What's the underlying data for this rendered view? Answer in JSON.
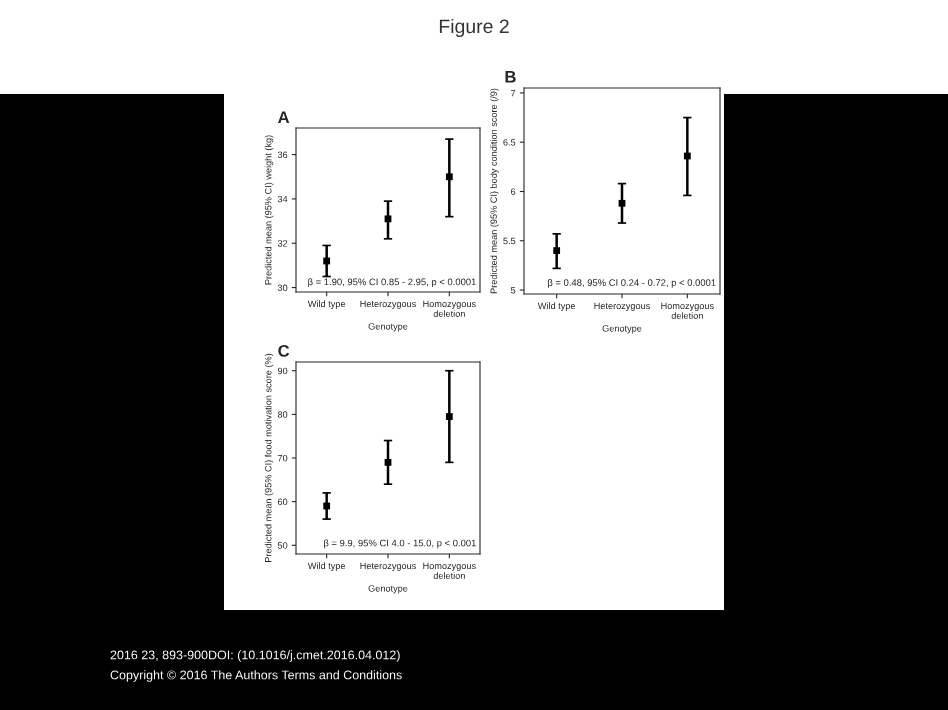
{
  "chart_data": [
    {
      "type": "scatter",
      "title": "A",
      "xlabel": "Genotype",
      "ylabel": "Predicted mean (95% CI) weight (kg)",
      "categories": [
        "Wild type",
        "Heterozygous",
        "Homozygous\ndeletion"
      ],
      "series": [
        {
          "color": "#000000",
          "values": [
            31.2,
            33.1,
            35.0
          ],
          "errors": [
            [
              30.5,
              31.9
            ],
            [
              32.2,
              33.9
            ],
            [
              33.2,
              36.7
            ]
          ]
        }
      ],
      "ylim": [
        29.8,
        37.2
      ],
      "yticks": [
        30,
        32,
        34,
        36
      ],
      "marker": "square",
      "grid": false,
      "legend": false,
      "annotations": [
        "β = 1.90, 95% CI 0.85 - 2.95, p < 0.0001",
        "Figure 2",
        "2016 23, 893-900DOI: (10.1016/j.cmet.2016.04.012)",
        "Copyright © 2016 The Authors Terms and Conditions"
      ]
    },
    {
      "type": "scatter",
      "title": "B",
      "xlabel": "Genotype",
      "ylabel": "Predicted mean (95% CI) body condition score (/9)",
      "categories": [
        "Wild type",
        "Heterozygous",
        "Homozygous\ndeletion"
      ],
      "series": [
        {
          "color": "#000000",
          "values": [
            5.4,
            5.88,
            6.36
          ],
          "errors": [
            [
              5.22,
              5.57
            ],
            [
              5.68,
              6.08
            ],
            [
              5.96,
              6.75
            ]
          ]
        }
      ],
      "ylim": [
        4.96,
        7.05
      ],
      "yticks": [
        5,
        5.5,
        6,
        6.5,
        7
      ],
      "marker": "square",
      "grid": false,
      "legend": false,
      "annotations": [
        "β = 0.48, 95% CI 0.24 - 0.72, p < 0.0001"
      ]
    },
    {
      "type": "scatter",
      "title": "C",
      "xlabel": "Genotype",
      "ylabel": "Predicted mean (95% CI) food motivation score (%)",
      "categories": [
        "Wild type",
        "Heterozygous",
        "Homozygous\ndeletion"
      ],
      "series": [
        {
          "color": "#000000",
          "values": [
            59,
            69,
            79.5
          ],
          "errors": [
            [
              56,
              62
            ],
            [
              64,
              74
            ],
            [
              69,
              90
            ]
          ]
        }
      ],
      "ylim": [
        48,
        92
      ],
      "yticks": [
        50,
        60,
        70,
        80,
        90
      ],
      "marker": "square",
      "grid": false,
      "legend": false,
      "annotations": [
        "β = 9.9, 95% CI 4.0 - 15.0, p < 0.001"
      ]
    }
  ]
}
